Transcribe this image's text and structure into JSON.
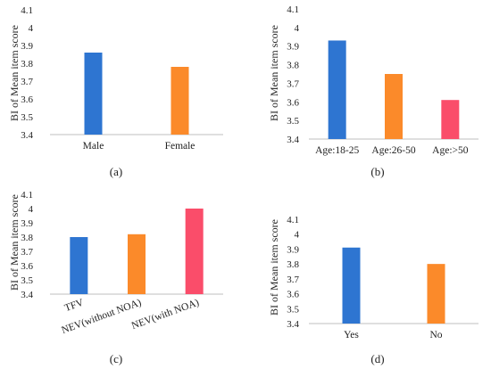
{
  "panels": [
    {
      "label": "(a)",
      "ylabel": "BI of Mean item score"
    },
    {
      "label": "(b)",
      "ylabel": "BI of Mean item score"
    },
    {
      "label": "(c)",
      "ylabel": "BI of Mean item score"
    },
    {
      "label": "(d)",
      "ylabel": "BI of Mean item score"
    }
  ],
  "colors": {
    "blue": "#2e75d1",
    "orange": "#fb8a2a",
    "red": "#fa4d6a",
    "axis": "#bfbfbf",
    "text": "#222222"
  },
  "chart_data": [
    {
      "type": "bar",
      "panel": "(a)",
      "categories": [
        "Male",
        "Female"
      ],
      "values": [
        3.86,
        3.78
      ],
      "bar_colors": [
        "blue",
        "orange"
      ],
      "ylabel": "BI of Mean item score",
      "ylim": [
        3.4,
        4.1
      ],
      "yticks": [
        "3.4",
        "3.5",
        "3.6",
        "3.7",
        "3.8",
        "3.9",
        "4",
        "4.1"
      ],
      "grid": false
    },
    {
      "type": "bar",
      "panel": "(b)",
      "categories": [
        "Age:18-25",
        "Age:26-50",
        "Age:>50"
      ],
      "values": [
        3.93,
        3.75,
        3.61
      ],
      "bar_colors": [
        "blue",
        "orange",
        "red"
      ],
      "ylabel": "BI of Mean item score",
      "ylim": [
        3.4,
        4.1
      ],
      "yticks": [
        "3.4",
        "3.5",
        "3.6",
        "3.7",
        "3.8",
        "3.9",
        "4",
        "4.1"
      ],
      "grid": false
    },
    {
      "type": "bar",
      "panel": "(c)",
      "categories": [
        "TFV",
        "NEV(without NOA)",
        "NEV(with NOA)"
      ],
      "values": [
        3.8,
        3.82,
        4.0
      ],
      "bar_colors": [
        "blue",
        "orange",
        "red"
      ],
      "ylabel": "BI of Mean item score",
      "ylim": [
        3.4,
        4.1
      ],
      "yticks": [
        "3.4",
        "3.5",
        "3.6",
        "3.7",
        "3.8",
        "3.9",
        "4",
        "4.1"
      ],
      "rotated_labels": true,
      "grid": false
    },
    {
      "type": "bar",
      "panel": "(d)",
      "categories": [
        "Yes",
        "No"
      ],
      "values": [
        3.91,
        3.8
      ],
      "bar_colors": [
        "blue",
        "orange"
      ],
      "ylabel": "BI of Mean item score",
      "ylim": [
        3.4,
        4.1
      ],
      "yticks": [
        "3.4",
        "3.5",
        "3.6",
        "3.7",
        "3.8",
        "3.9",
        "4",
        "4.1"
      ],
      "grid": false
    }
  ]
}
